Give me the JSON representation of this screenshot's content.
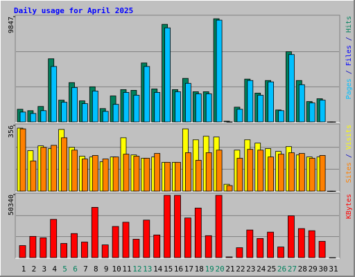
{
  "chart_data": [
    {
      "type": "bar",
      "title": "Daily usage for April 2025",
      "ylim": [
        0,
        9847
      ],
      "yticks": [
        9847
      ],
      "right_label": [
        {
          "text": "Pages",
          "color": "#00c0ff"
        },
        {
          "text": " / ",
          "color": "#0000c0"
        },
        {
          "text": "Files",
          "color": "#0000ff"
        },
        {
          "text": " / ",
          "color": "#0000c0"
        },
        {
          "text": "Hits",
          "color": "#00805c"
        }
      ],
      "series": [
        {
          "name": "Hits",
          "color": "#00805c",
          "values": [
            1182,
            1050,
            1444,
            5908,
            2035,
            3676,
            1969,
            3282,
            1247,
            2429,
            3020,
            2954,
            5514,
            3085,
            9125,
            3020,
            4070,
            2823,
            2823,
            9650,
            66,
            1379,
            4004,
            2692,
            3873,
            1116,
            6565,
            3873,
            1904,
            2166,
            0
          ]
        },
        {
          "name": "Pages",
          "color": "#00c0ff",
          "values": [
            919,
            788,
            1050,
            5186,
            1838,
            3217,
            1707,
            2889,
            985,
            1641,
            2757,
            2495,
            5186,
            2757,
            8797,
            2823,
            3610,
            2626,
            2626,
            9519,
            0,
            1182,
            3873,
            2495,
            3742,
            1050,
            6302,
            3479,
            1772,
            2035,
            0
          ]
        }
      ]
    },
    {
      "type": "bar",
      "ylim": [
        0,
        356
      ],
      "yticks": [
        356
      ],
      "right_label": [
        {
          "text": "Sites",
          "color": "#ff8000"
        },
        {
          "text": " / ",
          "color": "#0000c0"
        },
        {
          "text": "Visits",
          "color": "#ffff00"
        }
      ],
      "series": [
        {
          "name": "Visits",
          "color": "#ffff00",
          "values": [
            341,
            219,
            245,
            230,
            334,
            237,
            189,
            185,
            159,
            185,
            289,
            196,
            178,
            185,
            156,
            156,
            337,
            278,
            297,
            293,
            37,
            222,
            278,
            260,
            230,
            215,
            241,
            196,
            185,
            185,
            0
          ]
        },
        {
          "name": "Sites",
          "color": "#ff8000",
          "values": [
            337,
            163,
            237,
            248,
            289,
            222,
            174,
            193,
            174,
            185,
            200,
            189,
            178,
            204,
            156,
            156,
            208,
            167,
            208,
            222,
            30,
            178,
            226,
            222,
            185,
            200,
            208,
            204,
            178,
            193,
            0
          ]
        }
      ]
    },
    {
      "type": "bar",
      "ylim": [
        0,
        50340
      ],
      "yticks": [
        50340
      ],
      "right_label": [
        {
          "text": "KBytes",
          "color": "#ff0000"
        }
      ],
      "series": [
        {
          "name": "KBytes",
          "color": "#ff0000",
          "values": [
            9616,
            16968,
            15837,
            30543,
            11313,
            19230,
            12444,
            40159,
            10181,
            24887,
            28280,
            14706,
            29977,
            18099,
            49774,
            49774,
            31674,
            39594,
            17534,
            49774,
            566,
            7919,
            22059,
            15271,
            20362,
            8484,
            33371,
            23190,
            21493,
            13009,
            0
          ]
        }
      ],
      "categories": [
        "1",
        "2",
        "3",
        "4",
        "5",
        "6",
        "7",
        "8",
        "9",
        "10",
        "11",
        "12",
        "13",
        "14",
        "15",
        "16",
        "17",
        "18",
        "19",
        "20",
        "21",
        "22",
        "23",
        "24",
        "25",
        "26",
        "27",
        "28",
        "29",
        "30",
        "31"
      ],
      "category_colors": [
        "#000000",
        "#000000",
        "#000000",
        "#000000",
        "#00805c",
        "#00805c",
        "#000000",
        "#000000",
        "#000000",
        "#000000",
        "#000000",
        "#00805c",
        "#00805c",
        "#000000",
        "#000000",
        "#000000",
        "#000000",
        "#000000",
        "#00805c",
        "#00805c",
        "#000000",
        "#000000",
        "#000000",
        "#000000",
        "#000000",
        "#00805c",
        "#00805c",
        "#000000",
        "#000000",
        "#000000",
        "#000000"
      ]
    }
  ]
}
